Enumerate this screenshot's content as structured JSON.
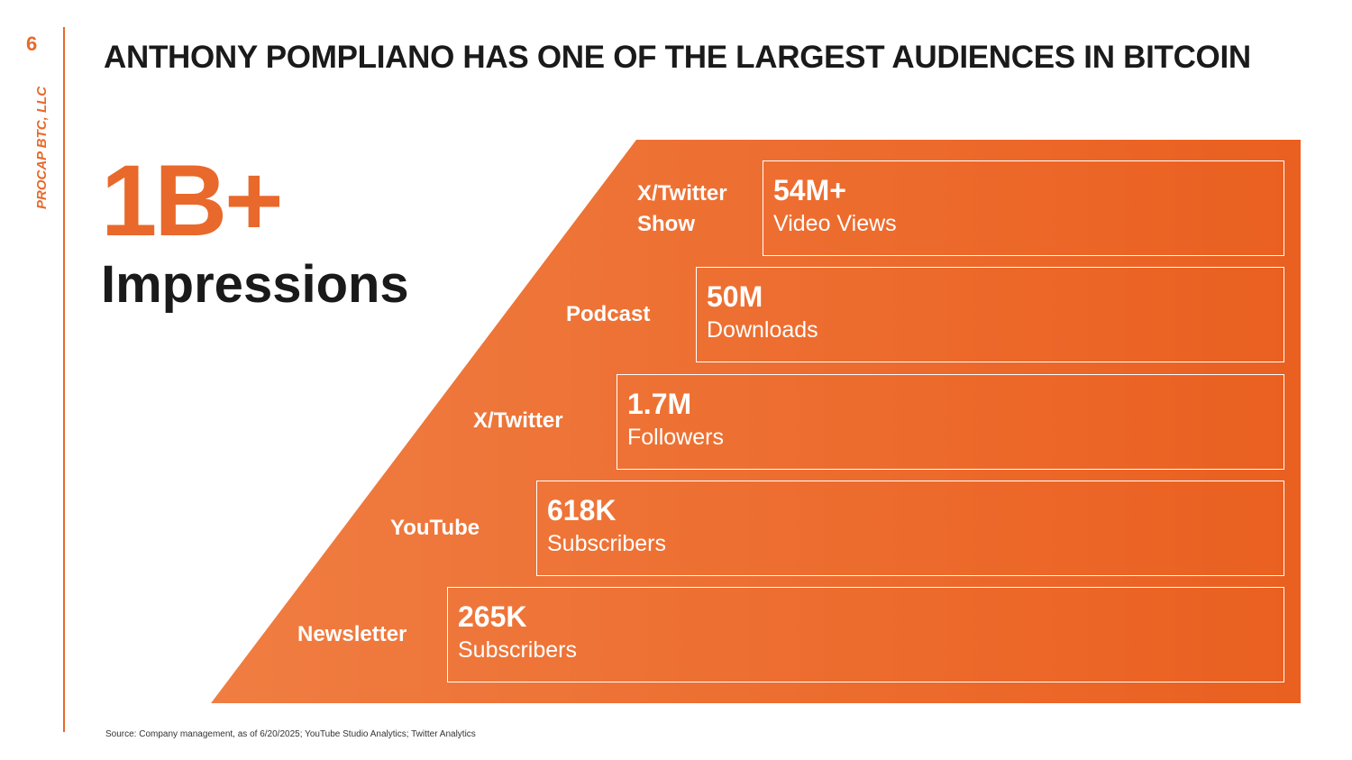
{
  "page_number": "6",
  "company": "PROCAP BTC, LLC",
  "title": "ANTHONY POMPLIANO HAS ONE OF THE LARGEST AUDIENCES IN BITCOIN",
  "headline": {
    "value": "1B+",
    "label": "Impressions"
  },
  "tiers": [
    {
      "channel": "X/Twitter Show",
      "value": "54M+",
      "metric": "Video Views"
    },
    {
      "channel": "Podcast",
      "value": "50M",
      "metric": "Downloads"
    },
    {
      "channel": "X/Twitter",
      "value": "1.7M",
      "metric": "Followers"
    },
    {
      "channel": "YouTube",
      "value": "618K",
      "metric": "Subscribers"
    },
    {
      "channel": "Newsletter",
      "value": "265K",
      "metric": "Subscribers"
    }
  ],
  "source": "Source: Company management, as of 6/20/2025; YouTube Studio Analytics; Twitter Analytics",
  "colors": {
    "accent": "#e8692b"
  }
}
